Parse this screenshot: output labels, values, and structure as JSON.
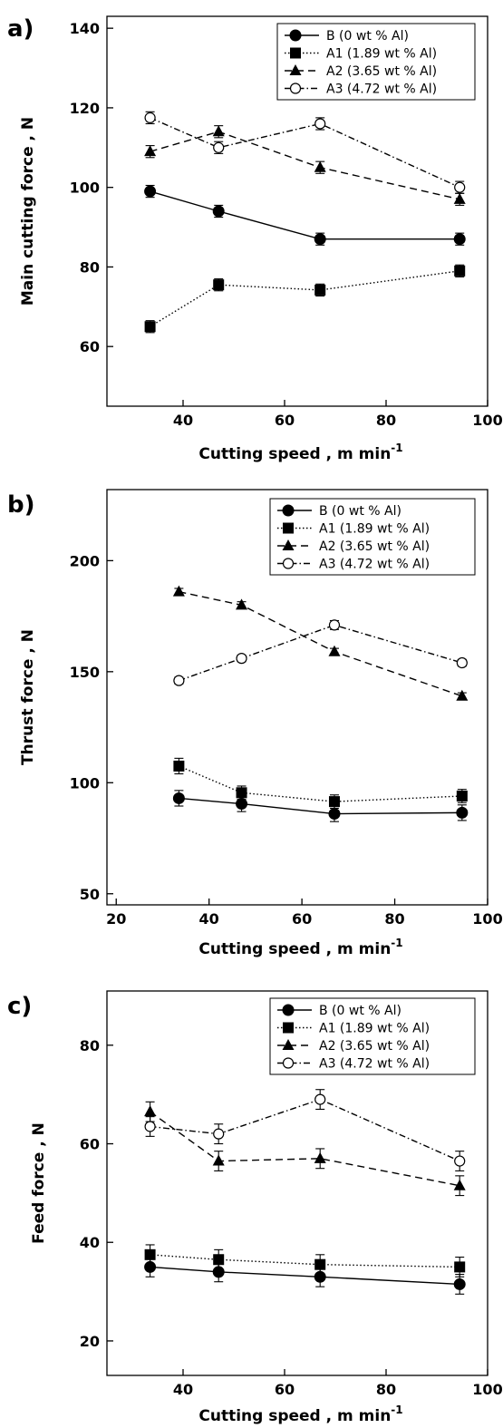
{
  "chart_data": [
    {
      "panel_label": "a)",
      "type": "line",
      "xlabel": "Cutting speed , m min",
      "xlabel_sup": "-1",
      "ylabel": "Main cutting force , N",
      "xlim": [
        25,
        100
      ],
      "ylim": [
        45,
        143
      ],
      "xticks": [
        "40",
        "60",
        "80",
        "100"
      ],
      "yticks": [
        "60",
        "80",
        "100",
        "120",
        "140"
      ],
      "legend_position": "top-right",
      "x": [
        33.5,
        47,
        67,
        94.5
      ],
      "series": [
        {
          "name": "B (0 wt % Al)",
          "values": [
            99,
            94,
            87,
            87
          ],
          "errors": [
            1.5,
            1.5,
            1.5,
            1.5
          ]
        },
        {
          "name": "A1 (1.89 wt % Al)",
          "values": [
            65,
            75.5,
            74.2,
            79
          ],
          "errors": [
            1.5,
            1.5,
            1.5,
            1.5
          ]
        },
        {
          "name": "A2 (3.65 wt % Al)",
          "values": [
            109,
            114,
            105,
            97
          ],
          "errors": [
            1.5,
            1.5,
            1.5,
            1.5
          ]
        },
        {
          "name": "A3 (4.72 wt % Al)",
          "values": [
            117.5,
            110,
            116,
            100
          ],
          "errors": [
            1.5,
            1.5,
            1.5,
            1.5
          ]
        }
      ]
    },
    {
      "panel_label": "b)",
      "type": "line",
      "xlabel": "Cutting speed , m min",
      "xlabel_sup": "-1",
      "ylabel": "Thrust force , N",
      "xlim": [
        18,
        100
      ],
      "ylim": [
        45,
        232
      ],
      "xticks": [
        "20",
        "40",
        "60",
        "80",
        "100"
      ],
      "yticks": [
        "50",
        "100",
        "150",
        "200"
      ],
      "legend_position": "top-right",
      "x": [
        33.5,
        47,
        67,
        94.5
      ],
      "series": [
        {
          "name": "B (0 wt % Al)",
          "values": [
            93,
            90.5,
            86,
            86.5
          ],
          "errors": [
            3.5,
            3.5,
            3.5,
            3.5
          ]
        },
        {
          "name": "A1 (1.89 wt % Al)",
          "values": [
            107.5,
            95.5,
            91.5,
            94
          ],
          "errors": [
            3.5,
            3,
            3,
            3
          ]
        },
        {
          "name": "A2 (3.65 wt % Al)",
          "values": [
            186,
            180,
            159,
            139
          ],
          "errors": [
            1.5,
            1.5,
            1.5,
            1.5
          ]
        },
        {
          "name": "A3 (4.72 wt % Al)",
          "values": [
            146,
            156,
            171,
            154
          ],
          "errors": [
            1.5,
            1.5,
            2,
            1.5
          ]
        }
      ]
    },
    {
      "panel_label": "c)",
      "type": "line",
      "xlabel": "Cutting speed , m min",
      "xlabel_sup": "-1",
      "ylabel": "Feed force , N",
      "xlim": [
        25,
        100
      ],
      "ylim": [
        13,
        91
      ],
      "xticks": [
        "40",
        "60",
        "80",
        "100"
      ],
      "yticks": [
        "20",
        "40",
        "60",
        "80"
      ],
      "legend_position": "top-right",
      "x": [
        33.5,
        47,
        67,
        94.5
      ],
      "series": [
        {
          "name": "B (0 wt % Al)",
          "values": [
            35,
            34,
            33,
            31.5
          ],
          "errors": [
            2,
            2,
            2,
            2
          ]
        },
        {
          "name": "A1 (1.89 wt % Al)",
          "values": [
            37.5,
            36.5,
            35.5,
            35
          ],
          "errors": [
            2,
            2,
            2,
            2
          ]
        },
        {
          "name": "A2 (3.65 wt % Al)",
          "values": [
            66.5,
            56.5,
            57,
            51.5
          ],
          "errors": [
            2,
            2,
            2,
            2
          ]
        },
        {
          "name": "A3 (4.72 wt % Al)",
          "values": [
            63.5,
            62,
            69,
            56.5
          ],
          "errors": [
            2,
            2,
            2,
            2
          ]
        }
      ]
    }
  ]
}
